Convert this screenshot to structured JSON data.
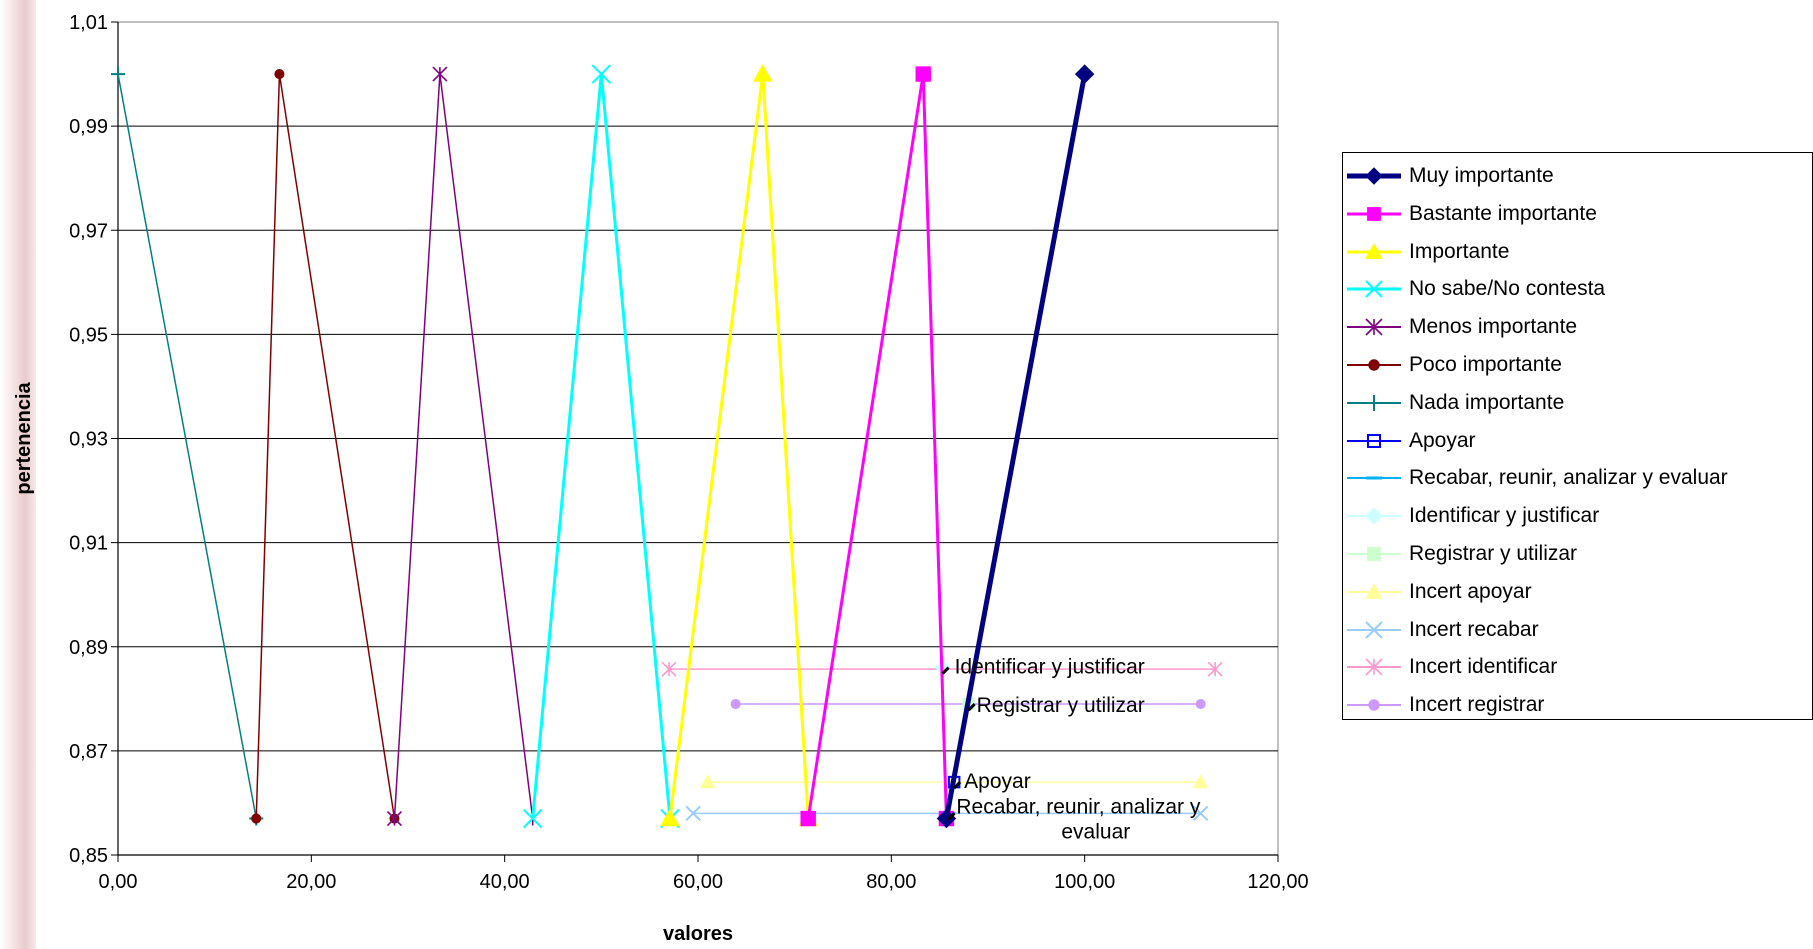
{
  "chart_data": {
    "type": "line",
    "title": "",
    "xlabel": "valores",
    "ylabel": "pertenencia",
    "xlim": [
      0,
      120
    ],
    "ylim": [
      0.85,
      1.01
    ],
    "x_ticks": [
      "0,00",
      "20,00",
      "40,00",
      "60,00",
      "80,00",
      "100,00",
      "120,00"
    ],
    "y_ticks": [
      "0,85",
      "0,87",
      "0,89",
      "0,91",
      "0,93",
      "0,95",
      "0,97",
      "0,99",
      "1,01"
    ],
    "grid": "horizontal",
    "legend_position": "right",
    "series": [
      {
        "name": "Muy importante",
        "color": "#000080",
        "marker": "diamond",
        "width": 5,
        "points": [
          [
            85.7,
            0.857
          ],
          [
            100,
            1.0
          ]
        ]
      },
      {
        "name": "Bastante importante",
        "color": "#ff00ff",
        "marker": "square",
        "width": 3,
        "points": [
          [
            71.4,
            0.857
          ],
          [
            83.3,
            1.0
          ],
          [
            85.7,
            0.857
          ]
        ]
      },
      {
        "name": "Importante",
        "color": "#ffff00",
        "marker": "triangle",
        "width": 3,
        "points": [
          [
            57.1,
            0.857
          ],
          [
            66.7,
            1.0
          ],
          [
            71.4,
            0.857
          ]
        ]
      },
      {
        "name": "No sabe/No contesta",
        "color": "#00ffff",
        "marker": "x",
        "width": 3,
        "points": [
          [
            42.9,
            0.857
          ],
          [
            50.0,
            1.0
          ],
          [
            57.1,
            0.857
          ]
        ]
      },
      {
        "name": "Menos importante",
        "color": "#800080",
        "marker": "star",
        "width": 1.5,
        "points": [
          [
            28.6,
            0.857
          ],
          [
            33.3,
            1.0
          ],
          [
            42.9,
            0.857
          ]
        ]
      },
      {
        "name": "Poco importante",
        "color": "#800000",
        "marker": "circle",
        "width": 1.5,
        "points": [
          [
            14.3,
            0.857
          ],
          [
            16.7,
            1.0
          ],
          [
            28.6,
            0.857
          ]
        ]
      },
      {
        "name": "Nada importante",
        "color": "#008080",
        "marker": "plus",
        "width": 1.5,
        "points": [
          [
            0,
            1.0
          ],
          [
            14.3,
            0.857
          ]
        ]
      },
      {
        "name": "Apoyar",
        "color": "#0000ff",
        "marker": "open-square",
        "width": 1.5,
        "points": [
          [
            86.5,
            0.864
          ]
        ]
      },
      {
        "name": "Recabar, reunir, analizar y evaluar",
        "color": "#00b0f0",
        "marker": "dash",
        "width": 1.5,
        "points": [
          [
            85.9,
            0.858
          ]
        ]
      },
      {
        "name": "Identificar y justificar",
        "color": "#ccffff",
        "marker": "diamond",
        "width": 1.5,
        "points": [
          [
            85.3,
            0.886
          ]
        ]
      },
      {
        "name": "Registrar y utilizar",
        "color": "#ccffcc",
        "marker": "square",
        "width": 1.5,
        "points": [
          [
            88.0,
            0.879
          ]
        ]
      },
      {
        "name": "Incert apoyar",
        "color": "#ffff99",
        "marker": "triangle",
        "width": 1.5,
        "points": [
          [
            61.0,
            0.864
          ],
          [
            112.0,
            0.864
          ]
        ]
      },
      {
        "name": "Incert recabar",
        "color": "#99ccff",
        "marker": "x",
        "width": 1.5,
        "points": [
          [
            59.5,
            0.858
          ],
          [
            112.0,
            0.858
          ]
        ]
      },
      {
        "name": "Incert identificar",
        "color": "#ff99cc",
        "marker": "star",
        "width": 1.5,
        "points": [
          [
            57.0,
            0.8857
          ],
          [
            113.5,
            0.8857
          ]
        ]
      },
      {
        "name": "Incert registrar",
        "color": "#cc99ff",
        "marker": "circle",
        "width": 1.5,
        "points": [
          [
            63.9,
            0.879
          ],
          [
            112.0,
            0.879
          ]
        ]
      }
    ],
    "annotations": [
      {
        "text": "Identificar y justificar",
        "x": 85.3,
        "y": 0.886
      },
      {
        "text": "Registrar y utilizar",
        "x": 88.0,
        "y": 0.879
      },
      {
        "text": "Apoyar",
        "x": 86.5,
        "y": 0.864
      },
      {
        "text": "Recabar, reunir, analizar y evaluar",
        "x": 85.9,
        "y": 0.858
      }
    ]
  }
}
